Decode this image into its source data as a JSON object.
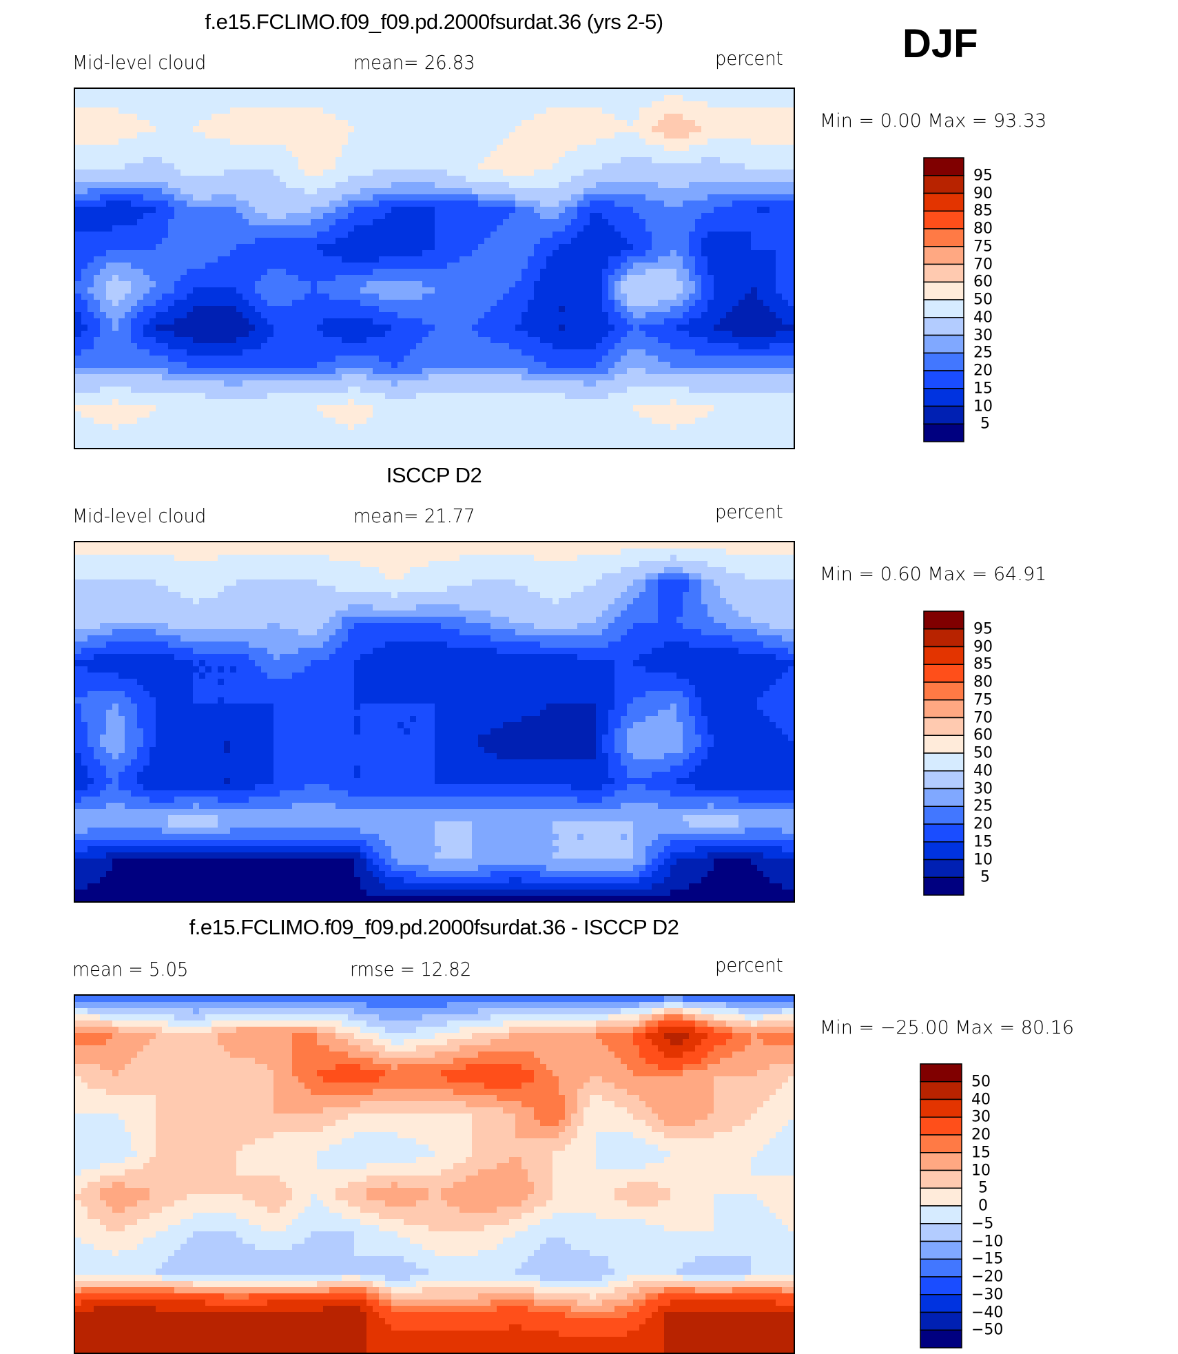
{
  "season": "DJF",
  "chart_data": [
    {
      "type": "heatmap",
      "title": "f.e15.FCLIMO.f09_f09.pd.2000fsurdat.36 (yrs 2-5)",
      "left_label": "Mid-level cloud",
      "center_label": "mean=   26.83",
      "units": "percent",
      "min_max": "Min =    0.00  Max =   93.33",
      "levels": [
        5,
        10,
        15,
        20,
        25,
        30,
        40,
        50,
        60,
        70,
        75,
        80,
        85,
        90,
        95
      ],
      "level_labels": [
        "95",
        "90",
        "85",
        "80",
        "75",
        "70",
        "60",
        "50",
        "40",
        "30",
        "25",
        "20",
        "15",
        "10",
        "5"
      ],
      "lon": [
        0,
        20,
        40,
        60,
        80,
        100,
        120,
        140,
        160,
        180,
        200,
        220,
        240,
        260,
        280,
        300,
        320,
        340,
        360
      ],
      "lat": [
        90,
        70,
        50,
        30,
        10,
        -10,
        -30,
        -50,
        -70,
        -90
      ],
      "values": [
        [
          45,
          45,
          45,
          45,
          45,
          45,
          45,
          45,
          45,
          45,
          45,
          45,
          45,
          45,
          45,
          45,
          45,
          45,
          45
        ],
        [
          55,
          55,
          50,
          50,
          55,
          55,
          55,
          50,
          45,
          45,
          45,
          50,
          55,
          55,
          50,
          70,
          55,
          55,
          55
        ],
        [
          40,
          40,
          35,
          45,
          40,
          40,
          55,
          45,
          40,
          40,
          50,
          55,
          50,
          40,
          35,
          35,
          35,
          40,
          40
        ],
        [
          15,
          10,
          15,
          25,
          25,
          35,
          30,
          20,
          15,
          15,
          15,
          20,
          30,
          15,
          20,
          25,
          20,
          15,
          15
        ],
        [
          15,
          20,
          20,
          25,
          20,
          15,
          15,
          10,
          10,
          15,
          20,
          25,
          15,
          10,
          15,
          25,
          10,
          15,
          15
        ],
        [
          20,
          35,
          25,
          15,
          15,
          25,
          20,
          25,
          30,
          25,
          25,
          20,
          10,
          10,
          40,
          35,
          15,
          10,
          20
        ],
        [
          10,
          25,
          10,
          5,
          5,
          15,
          15,
          10,
          15,
          20,
          20,
          15,
          10,
          10,
          20,
          15,
          10,
          5,
          10
        ],
        [
          25,
          25,
          25,
          20,
          20,
          20,
          20,
          25,
          20,
          25,
          25,
          25,
          20,
          20,
          30,
          25,
          25,
          25,
          25
        ],
        [
          50,
          55,
          50,
          50,
          45,
          50,
          50,
          55,
          45,
          50,
          50,
          50,
          50,
          45,
          50,
          55,
          50,
          50,
          50
        ],
        [
          45,
          45,
          45,
          45,
          45,
          45,
          45,
          45,
          45,
          45,
          45,
          45,
          45,
          45,
          45,
          45,
          45,
          45,
          45
        ]
      ]
    },
    {
      "type": "heatmap",
      "title": "ISCCP D2",
      "left_label": "Mid-level cloud",
      "center_label": "mean=   21.77",
      "units": "percent",
      "min_max": "Min =    0.60  Max =   64.91",
      "levels": [
        5,
        10,
        15,
        20,
        25,
        30,
        40,
        50,
        60,
        70,
        75,
        80,
        85,
        90,
        95
      ],
      "level_labels": [
        "95",
        "90",
        "85",
        "80",
        "75",
        "70",
        "60",
        "50",
        "40",
        "30",
        "25",
        "20",
        "15",
        "10",
        "5"
      ],
      "lon": [
        0,
        20,
        40,
        60,
        80,
        100,
        120,
        140,
        160,
        180,
        200,
        220,
        240,
        260,
        280,
        300,
        320,
        340,
        360
      ],
      "lat": [
        90,
        70,
        50,
        30,
        10,
        -10,
        -30,
        -50,
        -70,
        -90
      ],
      "values": [
        [
          55,
          55,
          55,
          55,
          55,
          55,
          55,
          55,
          55,
          55,
          55,
          55,
          55,
          55,
          55,
          55,
          55,
          55,
          55
        ],
        [
          40,
          40,
          40,
          45,
          40,
          40,
          40,
          45,
          50,
          45,
          40,
          40,
          45,
          40,
          30,
          15,
          30,
          40,
          40
        ],
        [
          35,
          30,
          30,
          35,
          35,
          30,
          35,
          20,
          20,
          20,
          25,
          30,
          35,
          30,
          20,
          20,
          25,
          30,
          35
        ],
        [
          15,
          10,
          10,
          15,
          15,
          25,
          20,
          15,
          10,
          10,
          10,
          10,
          10,
          15,
          15,
          10,
          10,
          10,
          15
        ],
        [
          20,
          25,
          15,
          15,
          15,
          15,
          15,
          15,
          15,
          15,
          15,
          15,
          10,
          10,
          20,
          25,
          10,
          15,
          20
        ],
        [
          15,
          30,
          15,
          10,
          10,
          15,
          20,
          15,
          15,
          15,
          10,
          5,
          5,
          10,
          30,
          30,
          15,
          10,
          15
        ],
        [
          10,
          20,
          10,
          10,
          10,
          15,
          20,
          15,
          15,
          15,
          15,
          15,
          15,
          10,
          20,
          15,
          10,
          10,
          10
        ],
        [
          30,
          30,
          30,
          35,
          30,
          30,
          30,
          30,
          30,
          30,
          30,
          30,
          30,
          30,
          30,
          30,
          35,
          30,
          30
        ],
        [
          10,
          5,
          5,
          5,
          5,
          5,
          5,
          5,
          25,
          30,
          30,
          25,
          30,
          30,
          30,
          10,
          5,
          5,
          10
        ],
        [
          3,
          3,
          3,
          3,
          3,
          3,
          3,
          3,
          3,
          3,
          3,
          3,
          3,
          3,
          3,
          3,
          3,
          3,
          3
        ]
      ]
    },
    {
      "type": "heatmap",
      "title": "f.e15.FCLIMO.f09_f09.pd.2000fsurdat.36 - ISCCP D2",
      "left_label": "mean =     5.05",
      "center_label": "rmse  =    12.82",
      "units": "percent",
      "min_max": "Min = −25.00  Max =   80.16",
      "levels": [
        -50,
        -40,
        -30,
        -20,
        -15,
        -10,
        -5,
        0,
        5,
        10,
        15,
        20,
        30,
        40,
        50
      ],
      "level_labels": [
        "50",
        "40",
        "30",
        "20",
        "15",
        "10",
        "5",
        "0",
        "−5",
        "−10",
        "−15",
        "−20",
        "−30",
        "−40",
        "−50"
      ],
      "lon": [
        0,
        20,
        40,
        60,
        80,
        100,
        120,
        140,
        160,
        180,
        200,
        220,
        240,
        260,
        280,
        300,
        320,
        340,
        360
      ],
      "lat": [
        90,
        70,
        50,
        30,
        10,
        -10,
        -30,
        -50,
        -70,
        -90
      ],
      "values": [
        [
          -20,
          -20,
          -20,
          -20,
          -20,
          -20,
          -20,
          -20,
          -20,
          -20,
          -20,
          -20,
          -20,
          -20,
          -20,
          -20,
          -20,
          -20,
          -20
        ],
        [
          20,
          15,
          10,
          5,
          15,
          15,
          15,
          5,
          -5,
          0,
          5,
          10,
          10,
          15,
          20,
          50,
          25,
          15,
          20
        ],
        [
          5,
          10,
          5,
          10,
          5,
          10,
          20,
          25,
          20,
          20,
          25,
          25,
          15,
          10,
          15,
          15,
          10,
          10,
          5
        ],
        [
          0,
          0,
          5,
          10,
          10,
          10,
          10,
          5,
          5,
          5,
          5,
          10,
          20,
          0,
          5,
          15,
          10,
          5,
          0
        ],
        [
          -5,
          -5,
          5,
          10,
          5,
          0,
          0,
          -5,
          -5,
          0,
          5,
          10,
          5,
          0,
          -5,
          0,
          0,
          0,
          -5
        ],
        [
          5,
          15,
          10,
          5,
          5,
          10,
          0,
          10,
          15,
          10,
          15,
          15,
          5,
          0,
          10,
          5,
          0,
          0,
          5
        ],
        [
          0,
          5,
          0,
          -5,
          -5,
          0,
          -5,
          -5,
          0,
          5,
          5,
          0,
          -5,
          0,
          -5,
          0,
          0,
          -5,
          0
        ],
        [
          -5,
          -5,
          -5,
          -10,
          -10,
          -10,
          -10,
          -5,
          -10,
          -5,
          -5,
          -5,
          -10,
          -10,
          0,
          -5,
          -10,
          -5,
          -5
        ],
        [
          40,
          50,
          45,
          45,
          40,
          45,
          45,
          50,
          20,
          20,
          20,
          25,
          20,
          15,
          20,
          45,
          45,
          45,
          40
        ],
        [
          40,
          40,
          40,
          40,
          40,
          40,
          40,
          40,
          40,
          40,
          40,
          40,
          40,
          40,
          40,
          40,
          40,
          40,
          40
        ]
      ]
    }
  ],
  "colormap": [
    "#800000",
    "#B82300",
    "#E33400",
    "#FF4F1A",
    "#FF7A45",
    "#FFA882",
    "#FFCAB0",
    "#FFEBDA",
    "#D6EBFF",
    "#B3CCFF",
    "#80A8FF",
    "#4277FF",
    "#1A4DFF",
    "#0033E0",
    "#0020B3",
    "#000080"
  ]
}
